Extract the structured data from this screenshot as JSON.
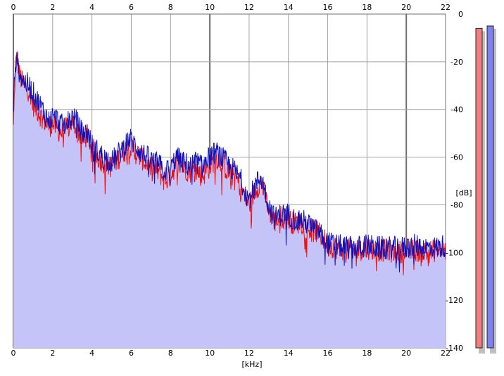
{
  "chart_data": {
    "type": "area",
    "xlabel": "[kHz]",
    "ylabel": "[dB]",
    "xlim": [
      0,
      22
    ],
    "ylim": [
      -140,
      0
    ],
    "x_ticks": [
      "0",
      "2",
      "4",
      "6",
      "8",
      "10",
      "12",
      "14",
      "16",
      "18",
      "20",
      "22"
    ],
    "y_ticks": [
      "0",
      "-20",
      "-40",
      "-60",
      "-80",
      "-100",
      "-120",
      "-140"
    ],
    "grid": true,
    "colors": {
      "fill": "#c4c4f8",
      "left_channel": "#ee1111",
      "right_channel": "#1111bb",
      "meter_left": "#f08080",
      "meter_right": "#8080f0",
      "grid": "#a0a0a0",
      "grid_major": "#707070"
    },
    "series": [
      {
        "x": [
          0,
          0.1,
          0.2,
          0.3,
          0.5,
          0.8,
          1.0,
          1.2,
          1.5,
          1.8,
          2.0,
          2.2,
          2.5,
          2.8,
          3.0,
          3.3,
          3.5,
          3.8,
          4.0,
          4.3,
          4.6,
          5.0,
          5.3,
          5.6,
          5.9,
          6.2,
          6.5,
          6.8,
          7.1,
          7.4,
          7.7,
          8.0,
          8.3,
          8.6,
          9.0,
          9.3,
          9.6,
          10.0,
          10.3,
          10.6,
          11.0,
          11.3,
          11.6,
          12.0,
          12.3,
          12.6,
          13.0,
          13.3,
          13.6,
          14.0,
          14.3,
          14.6,
          15.0,
          15.3,
          15.6,
          16.0,
          16.5,
          17.0,
          17.5,
          18.0,
          18.5,
          19.0,
          19.5,
          20.0,
          20.5,
          21.0,
          21.5,
          22.0
        ],
        "values": [
          -48,
          -22,
          -18,
          -25,
          -30,
          -32,
          -38,
          -40,
          -44,
          -47,
          -46,
          -48,
          -50,
          -47,
          -45,
          -49,
          -52,
          -51,
          -56,
          -60,
          -62,
          -64,
          -61,
          -58,
          -55,
          -58,
          -60,
          -63,
          -65,
          -66,
          -70,
          -68,
          -62,
          -64,
          -66,
          -65,
          -68,
          -64,
          -60,
          -62,
          -67,
          -68,
          -73,
          -80,
          -74,
          -70,
          -82,
          -87,
          -85,
          -86,
          -88,
          -87,
          -90,
          -91,
          -92,
          -97,
          -98,
          -99,
          -99,
          -98,
          -99,
          -99,
          -100,
          -99,
          -99,
          -100,
          -99,
          -99
        ]
      },
      {
        "x": [
          0,
          0.1,
          0.2,
          0.3,
          0.5,
          0.8,
          1.0,
          1.2,
          1.5,
          1.8,
          2.0,
          2.2,
          2.5,
          2.8,
          3.0,
          3.3,
          3.5,
          3.8,
          4.0,
          4.3,
          4.6,
          5.0,
          5.3,
          5.6,
          5.9,
          6.2,
          6.5,
          6.8,
          7.1,
          7.4,
          7.7,
          8.0,
          8.3,
          8.6,
          9.0,
          9.3,
          9.6,
          10.0,
          10.3,
          10.6,
          11.0,
          11.3,
          11.6,
          12.0,
          12.3,
          12.6,
          13.0,
          13.3,
          13.6,
          14.0,
          14.3,
          14.6,
          15.0,
          15.3,
          15.6,
          16.0,
          16.5,
          17.0,
          17.5,
          18.0,
          18.5,
          19.0,
          19.5,
          20.0,
          20.5,
          21.0,
          21.5,
          22.0
        ],
        "values": [
          -40,
          -20,
          -21,
          -24,
          -28,
          -30,
          -33,
          -36,
          -40,
          -45,
          -43,
          -44,
          -47,
          -45,
          -43,
          -46,
          -50,
          -50,
          -55,
          -58,
          -60,
          -62,
          -59,
          -56,
          -52,
          -55,
          -58,
          -60,
          -62,
          -63,
          -66,
          -65,
          -60,
          -62,
          -64,
          -62,
          -64,
          -60,
          -58,
          -60,
          -64,
          -66,
          -70,
          -78,
          -72,
          -68,
          -80,
          -86,
          -84,
          -84,
          -86,
          -86,
          -88,
          -90,
          -92,
          -96,
          -97,
          -98,
          -98,
          -97,
          -98,
          -98,
          -98,
          -98,
          -97,
          -98,
          -98,
          -97
        ]
      }
    ],
    "meters": {
      "left_level": -139,
      "right_level": -139,
      "left_peak": -6,
      "right_peak": -5
    }
  }
}
